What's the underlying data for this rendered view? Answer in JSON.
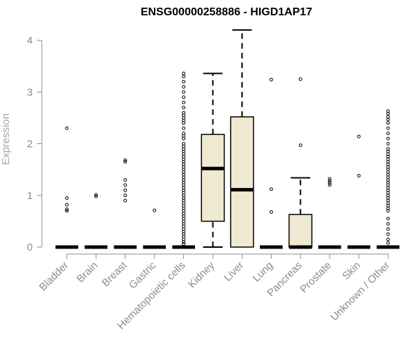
{
  "chart_data": {
    "type": "boxplot",
    "title": "ENSG00000258886 - HIGD1AP17",
    "xlabel": "",
    "ylabel": "Expression",
    "ylim": [
      0,
      4.2
    ],
    "yticks": [
      0,
      1,
      2,
      3,
      4
    ],
    "box_fill": "#efe9d1",
    "categories": [
      "Bladder",
      "Brain",
      "Breast",
      "Gastric",
      "Hematopoietic cells",
      "Kidney",
      "Liver",
      "Lung",
      "Pancreas",
      "Prostate",
      "Skin",
      "Unknown / Other"
    ],
    "boxes": [
      {
        "category": "Bladder",
        "min": 0,
        "q1": 0,
        "median": 0,
        "q3": 0,
        "max": 0,
        "outliers": [
          2.3,
          0.95,
          0.82,
          0.73,
          0.7
        ]
      },
      {
        "category": "Brain",
        "min": 0,
        "q1": 0,
        "median": 0,
        "q3": 0,
        "max": 0,
        "outliers": [
          1.01,
          0.98
        ]
      },
      {
        "category": "Breast",
        "min": 0,
        "q1": 0,
        "median": 0,
        "q3": 0,
        "max": 0,
        "outliers": [
          1.68,
          1.65,
          1.3,
          1.2,
          1.1,
          1.0,
          0.9
        ]
      },
      {
        "category": "Gastric",
        "min": 0,
        "q1": 0,
        "median": 0,
        "q3": 0,
        "max": 0,
        "outliers": [
          0.71
        ]
      },
      {
        "category": "Hematopoietic cells",
        "min": 0,
        "q1": 0,
        "median": 0,
        "q3": 0,
        "max": 0,
        "outliers": [
          3.36,
          3.3,
          3.2,
          3.1,
          3.0,
          2.9,
          2.8,
          2.7,
          2.6,
          2.55,
          2.5,
          2.45,
          2.4,
          2.3,
          2.2,
          2.15,
          2.1,
          2.0,
          1.95,
          1.9,
          1.85,
          1.8,
          1.75,
          1.7,
          1.65,
          1.6,
          1.55,
          1.5,
          1.45,
          1.4,
          1.35,
          1.3,
          1.25,
          1.2,
          1.15,
          1.1,
          1.05,
          1.0,
          0.95,
          0.9,
          0.85,
          0.8,
          0.75,
          0.7,
          0.65,
          0.6,
          0.55,
          0.5,
          0.45,
          0.4,
          0.35,
          0.3,
          0.25,
          0.2,
          0.15,
          0.1,
          0.06
        ]
      },
      {
        "category": "Kidney",
        "min": 0,
        "q1": 0.5,
        "median": 1.52,
        "q3": 2.18,
        "max": 3.36,
        "outliers": []
      },
      {
        "category": "Liver",
        "min": 0,
        "q1": 0,
        "median": 1.11,
        "q3": 2.52,
        "max": 4.2,
        "outliers": []
      },
      {
        "category": "Lung",
        "min": 0,
        "q1": 0,
        "median": 0,
        "q3": 0,
        "max": 0,
        "outliers": [
          3.24,
          1.12,
          0.68
        ]
      },
      {
        "category": "Pancreas",
        "min": 0,
        "q1": 0,
        "median": 0,
        "q3": 0.63,
        "max": 1.34,
        "outliers": [
          3.25,
          1.97
        ]
      },
      {
        "category": "Prostate",
        "min": 0,
        "q1": 0,
        "median": 0,
        "q3": 0,
        "max": 0,
        "outliers": [
          1.32,
          1.28,
          1.24,
          1.2
        ]
      },
      {
        "category": "Skin",
        "min": 0,
        "q1": 0,
        "median": 0,
        "q3": 0,
        "max": 0,
        "outliers": [
          2.14,
          1.38
        ]
      },
      {
        "category": "Unknown / Other",
        "min": 0,
        "q1": 0,
        "median": 0,
        "q3": 0,
        "max": 0,
        "outliers": [
          2.63,
          2.58,
          2.52,
          2.47,
          2.4,
          2.3,
          2.2,
          2.1,
          2.0,
          1.9,
          1.85,
          1.8,
          1.75,
          1.7,
          1.65,
          1.6,
          1.55,
          1.5,
          1.45,
          1.4,
          1.35,
          1.3,
          1.25,
          1.2,
          1.15,
          1.1,
          1.05,
          1.0,
          0.95,
          0.9,
          0.85,
          0.8,
          0.75,
          0.7,
          0.55,
          0.45,
          0.35,
          0.25,
          0.15,
          0.08
        ]
      }
    ]
  }
}
